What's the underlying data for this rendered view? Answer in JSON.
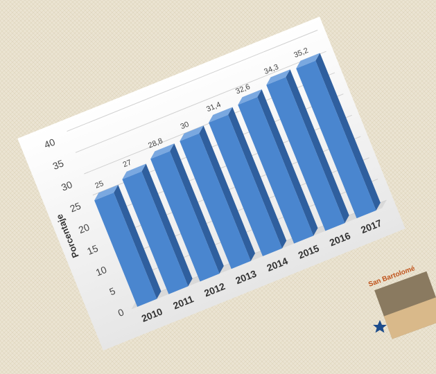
{
  "chart_data": {
    "type": "bar",
    "y_axis_label": "Porcentaje",
    "categories": [
      "2010",
      "2011",
      "2012",
      "2013",
      "2014",
      "2015",
      "2016",
      "2017"
    ],
    "values": [
      25,
      27,
      28.8,
      30,
      31.4,
      32.6,
      34.3,
      35.2
    ],
    "value_labels": [
      "25",
      "27",
      "28,8",
      "30",
      "31,4",
      "32,6",
      "34,3",
      "35,2"
    ],
    "color": "#4a86cf",
    "ylim": [
      0,
      40
    ],
    "yticks": [
      0,
      5,
      10,
      15,
      20,
      25,
      30,
      35,
      40
    ],
    "grid": true,
    "annotations": [
      "San Bartolomé"
    ]
  }
}
